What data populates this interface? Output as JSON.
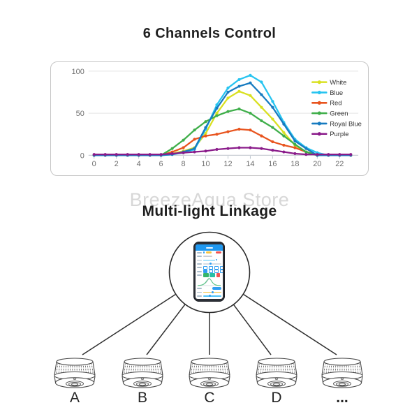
{
  "page": {
    "title": "6 Channels Control",
    "watermark": "BreezeAqua Store",
    "section_title": "Multi-light Linkage"
  },
  "chart_data": {
    "type": "line",
    "title": "6 Channels Control",
    "xlabel": "",
    "ylabel": "",
    "xlim": [
      0,
      23
    ],
    "ylim": [
      0,
      100
    ],
    "xticks": [
      0,
      2,
      4,
      6,
      8,
      10,
      12,
      14,
      16,
      18,
      20,
      22
    ],
    "yticks": [
      0,
      50,
      100
    ],
    "grid": true,
    "legend_position": "right",
    "hours": [
      0,
      1,
      2,
      3,
      4,
      5,
      6,
      7,
      8,
      9,
      10,
      11,
      12,
      13,
      14,
      15,
      16,
      17,
      18,
      19,
      20,
      21,
      22,
      23
    ],
    "series": [
      {
        "name": "White",
        "color": "#d9e021",
        "values": [
          0,
          0,
          0,
          0,
          0,
          0,
          0,
          2,
          5,
          9,
          26,
          50,
          68,
          76,
          71,
          57,
          43,
          27,
          12,
          4,
          1,
          0,
          0,
          0
        ]
      },
      {
        "name": "Blue",
        "color": "#27c4f0",
        "values": [
          0,
          0,
          0,
          0,
          0,
          0,
          0,
          1,
          3,
          7,
          31,
          60,
          80,
          90,
          95,
          87,
          64,
          39,
          19,
          9,
          3,
          0,
          0,
          0
        ]
      },
      {
        "name": "Red",
        "color": "#e8541e",
        "values": [
          0,
          0,
          0,
          0,
          0,
          0,
          0,
          4,
          9,
          19,
          23,
          25,
          28,
          31,
          30,
          23,
          16,
          12,
          9,
          4,
          0,
          0,
          0,
          0
        ]
      },
      {
        "name": "Green",
        "color": "#3eae49",
        "values": [
          0,
          0,
          0,
          0,
          0,
          0,
          0,
          8,
          18,
          30,
          40,
          47,
          52,
          55,
          50,
          41,
          33,
          23,
          13,
          4,
          0,
          0,
          0,
          0
        ]
      },
      {
        "name": "Royal Blue",
        "color": "#177bc0",
        "values": [
          0,
          0,
          0,
          0,
          0,
          0,
          0,
          1,
          4,
          8,
          33,
          56,
          75,
          82,
          86,
          72,
          57,
          37,
          17,
          8,
          0,
          0,
          0,
          0
        ]
      },
      {
        "name": "Purple",
        "color": "#8a1b8a",
        "values": [
          1,
          1,
          1,
          1,
          1,
          1,
          1,
          2,
          3,
          4,
          5,
          7,
          8,
          9,
          9,
          8,
          6,
          4,
          2,
          1,
          1,
          1,
          1,
          1
        ]
      }
    ]
  },
  "diagram": {
    "phone_icon": "smartphone-app-screen",
    "devices": [
      {
        "label": "A"
      },
      {
        "label": "B"
      },
      {
        "label": "C"
      },
      {
        "label": "D"
      },
      {
        "label": "..."
      }
    ]
  }
}
